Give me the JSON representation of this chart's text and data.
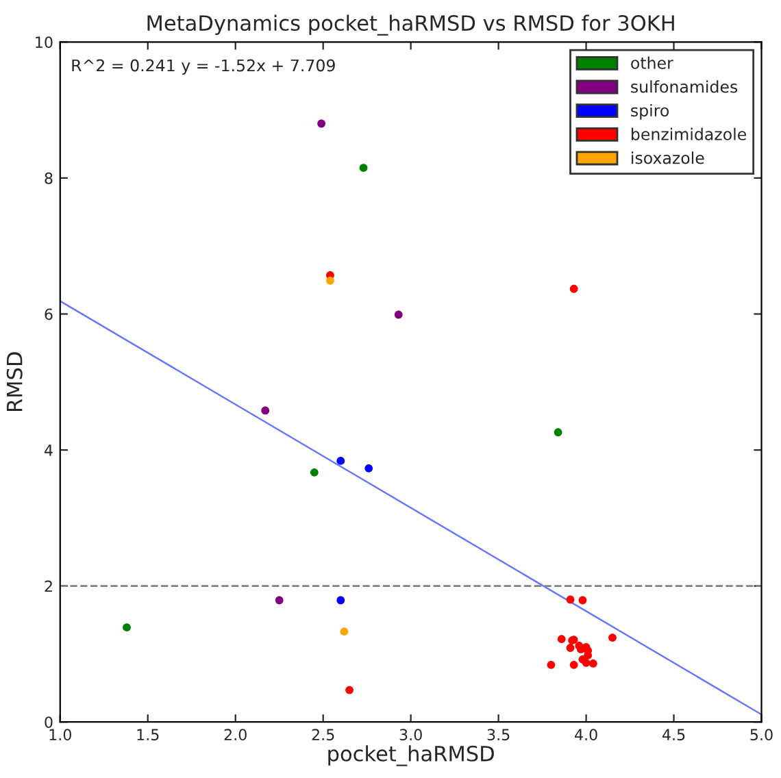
{
  "chart_data": {
    "type": "scatter",
    "title": "MetaDynamics pocket_haRMSD vs RMSD for 3OKH",
    "xlabel": "pocket_haRMSD",
    "ylabel": "RMSD",
    "xlim": [
      1.0,
      5.0
    ],
    "ylim": [
      0,
      10
    ],
    "xticks": [
      {
        "value": 1.0,
        "label": "1.0"
      },
      {
        "value": 1.5,
        "label": "1.5"
      },
      {
        "value": 2.0,
        "label": "2.0"
      },
      {
        "value": 2.5,
        "label": "2.5"
      },
      {
        "value": 3.0,
        "label": "3.0"
      },
      {
        "value": 3.5,
        "label": "3.5"
      },
      {
        "value": 4.0,
        "label": "4.0"
      },
      {
        "value": 4.5,
        "label": "4.5"
      },
      {
        "value": 5.0,
        "label": "5.0"
      }
    ],
    "yticks": [
      0,
      2,
      4,
      6,
      8,
      10
    ],
    "annotations": [
      "R^2 = 0.241 y = -1.52x + 7.709"
    ],
    "ref_lines": [
      {
        "axis": "y",
        "value": 2,
        "color": "#808080",
        "line_style": "dashed"
      }
    ],
    "legend": "top right",
    "grid": false,
    "marker": "circle",
    "series": [
      {
        "name": "other",
        "color": "#008000",
        "x": [
          1.38,
          2.45,
          2.73,
          3.84
        ],
        "values": [
          1.39,
          3.67,
          8.15,
          4.26
        ]
      },
      {
        "name": "sulfonamides",
        "color": "#800080",
        "x": [
          2.49,
          2.93,
          2.17,
          2.25
        ],
        "values": [
          8.8,
          5.99,
          4.58,
          1.79
        ]
      },
      {
        "name": "spiro",
        "color": "#0000ff",
        "x": [
          2.6,
          2.76,
          2.6
        ],
        "values": [
          3.84,
          3.73,
          1.79
        ]
      },
      {
        "name": "benzimidazole",
        "color": "#ff0000",
        "x": [
          2.54,
          2.65,
          3.93,
          3.91,
          3.98,
          3.86,
          3.92,
          3.93,
          3.91,
          3.96,
          3.97,
          4.0,
          4.01,
          4.01,
          3.98,
          4.0,
          4.04,
          3.93,
          3.8,
          4.15
        ],
        "values": [
          6.57,
          0.47,
          6.37,
          1.8,
          1.79,
          1.22,
          1.2,
          1.21,
          1.09,
          1.12,
          1.07,
          1.1,
          1.05,
          0.98,
          0.92,
          0.87,
          0.86,
          0.84,
          0.84,
          1.24
        ]
      },
      {
        "name": "isoxazole",
        "color": "#ffa500",
        "x": [
          2.54,
          2.62
        ],
        "values": [
          6.49,
          1.33
        ]
      },
      {
        "type": "line",
        "marker": "none",
        "color": "#6677ff",
        "x": [
          1.0,
          5.0
        ],
        "values": [
          6.19,
          0.11
        ]
      }
    ]
  }
}
